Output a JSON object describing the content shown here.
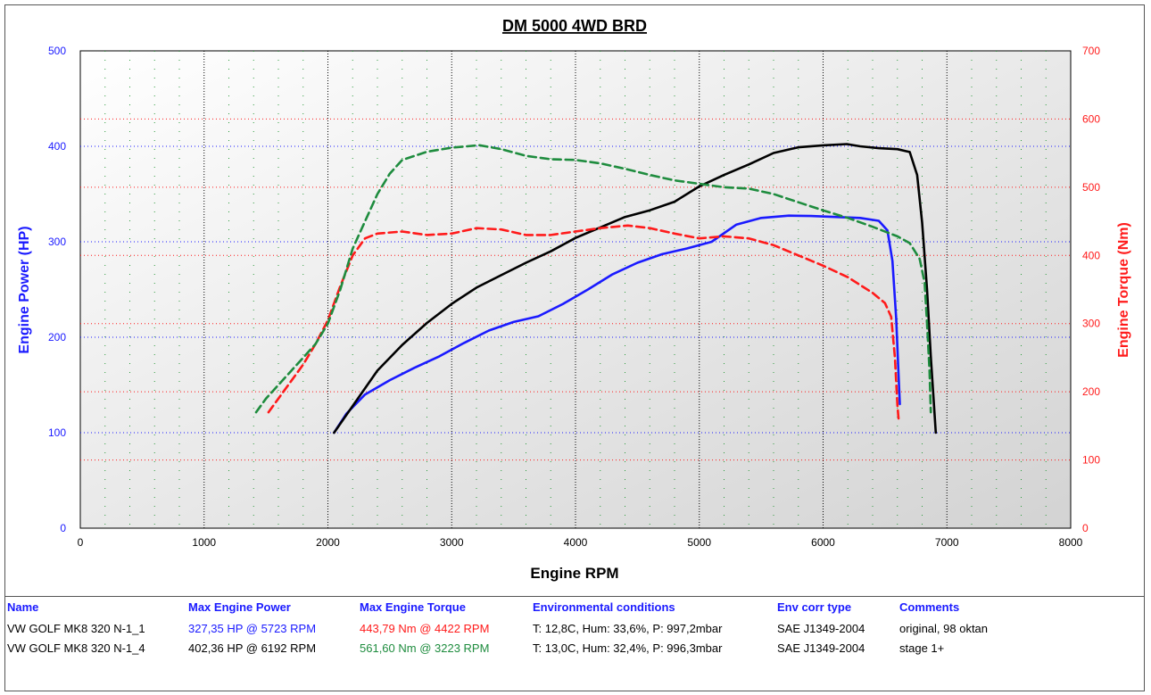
{
  "chart_data": {
    "type": "line",
    "title": "DM 5000 4WD BRD",
    "xlabel": "Engine RPM",
    "ylabel_left": "Engine Power (HP)",
    "ylabel_right": "Engine Torque (Nm)",
    "xlim": [
      0,
      8000
    ],
    "ylim_left": [
      0,
      500
    ],
    "ylim_right": [
      0,
      700
    ],
    "x_ticks": [
      0,
      1000,
      2000,
      3000,
      4000,
      5000,
      6000,
      7000,
      8000
    ],
    "y_ticks_left": [
      0,
      100,
      200,
      300,
      400,
      500
    ],
    "y_ticks_right": [
      0,
      100,
      200,
      300,
      400,
      500,
      600,
      700
    ],
    "grid": true,
    "colors": {
      "left_axis": "#1a1aff",
      "right_axis": "#ff1a1a",
      "x_axis": "#000000"
    },
    "series": [
      {
        "axis": "left",
        "color": "#1a1aff",
        "dash": false,
        "points": [
          [
            2050,
            100
          ],
          [
            2150,
            120
          ],
          [
            2300,
            140
          ],
          [
            2500,
            155
          ],
          [
            2700,
            168
          ],
          [
            2900,
            180
          ],
          [
            3100,
            194
          ],
          [
            3300,
            207
          ],
          [
            3500,
            216
          ],
          [
            3700,
            222
          ],
          [
            3900,
            235
          ],
          [
            4100,
            250
          ],
          [
            4300,
            266
          ],
          [
            4500,
            278
          ],
          [
            4700,
            287
          ],
          [
            4900,
            293
          ],
          [
            5100,
            300
          ],
          [
            5300,
            318
          ],
          [
            5500,
            325
          ],
          [
            5723,
            327.35
          ],
          [
            5900,
            327
          ],
          [
            6100,
            326
          ],
          [
            6300,
            325
          ],
          [
            6450,
            322
          ],
          [
            6520,
            312
          ],
          [
            6560,
            280
          ],
          [
            6590,
            220
          ],
          [
            6610,
            160
          ],
          [
            6620,
            130
          ]
        ]
      },
      {
        "axis": "left",
        "color": "#000000",
        "dash": false,
        "points": [
          [
            2050,
            100
          ],
          [
            2200,
            128
          ],
          [
            2400,
            165
          ],
          [
            2600,
            192
          ],
          [
            2800,
            215
          ],
          [
            3000,
            235
          ],
          [
            3200,
            252
          ],
          [
            3400,
            265
          ],
          [
            3600,
            278
          ],
          [
            3800,
            290
          ],
          [
            4000,
            304
          ],
          [
            4200,
            315
          ],
          [
            4400,
            326
          ],
          [
            4600,
            333
          ],
          [
            4800,
            342
          ],
          [
            5000,
            358
          ],
          [
            5200,
            370
          ],
          [
            5400,
            381
          ],
          [
            5600,
            393
          ],
          [
            5800,
            399
          ],
          [
            6000,
            401
          ],
          [
            6192,
            402.36
          ],
          [
            6300,
            400
          ],
          [
            6450,
            398
          ],
          [
            6600,
            397
          ],
          [
            6700,
            394
          ],
          [
            6760,
            370
          ],
          [
            6800,
            320
          ],
          [
            6840,
            250
          ],
          [
            6870,
            180
          ],
          [
            6900,
            120
          ],
          [
            6910,
            100
          ]
        ]
      },
      {
        "axis": "right",
        "color": "#ff1a1a",
        "dash": true,
        "points": [
          [
            1520,
            170
          ],
          [
            1600,
            190
          ],
          [
            1700,
            215
          ],
          [
            1800,
            240
          ],
          [
            1900,
            270
          ],
          [
            2000,
            305
          ],
          [
            2100,
            355
          ],
          [
            2200,
            400
          ],
          [
            2300,
            425
          ],
          [
            2400,
            432
          ],
          [
            2600,
            435
          ],
          [
            2800,
            430
          ],
          [
            3000,
            432
          ],
          [
            3200,
            440
          ],
          [
            3400,
            438
          ],
          [
            3600,
            430
          ],
          [
            3800,
            430
          ],
          [
            4000,
            435
          ],
          [
            4200,
            440
          ],
          [
            4422,
            443.79
          ],
          [
            4600,
            440
          ],
          [
            4800,
            432
          ],
          [
            5000,
            425
          ],
          [
            5200,
            428
          ],
          [
            5400,
            425
          ],
          [
            5600,
            415
          ],
          [
            5800,
            400
          ],
          [
            6000,
            385
          ],
          [
            6200,
            368
          ],
          [
            6400,
            345
          ],
          [
            6500,
            330
          ],
          [
            6550,
            310
          ],
          [
            6580,
            250
          ],
          [
            6600,
            180
          ],
          [
            6610,
            160
          ]
        ]
      },
      {
        "axis": "right",
        "color": "#1e8c3e",
        "dash": true,
        "points": [
          [
            1420,
            170
          ],
          [
            1500,
            190
          ],
          [
            1600,
            210
          ],
          [
            1700,
            230
          ],
          [
            1800,
            250
          ],
          [
            1900,
            270
          ],
          [
            2000,
            300
          ],
          [
            2100,
            350
          ],
          [
            2200,
            410
          ],
          [
            2300,
            450
          ],
          [
            2400,
            490
          ],
          [
            2500,
            520
          ],
          [
            2600,
            540
          ],
          [
            2800,
            552
          ],
          [
            3000,
            558
          ],
          [
            3223,
            561.6
          ],
          [
            3400,
            556
          ],
          [
            3600,
            546
          ],
          [
            3800,
            541
          ],
          [
            4000,
            540
          ],
          [
            4200,
            535
          ],
          [
            4400,
            527
          ],
          [
            4600,
            518
          ],
          [
            4800,
            510
          ],
          [
            5000,
            505
          ],
          [
            5200,
            500
          ],
          [
            5400,
            498
          ],
          [
            5600,
            490
          ],
          [
            5800,
            478
          ],
          [
            6000,
            466
          ],
          [
            6200,
            455
          ],
          [
            6400,
            442
          ],
          [
            6600,
            428
          ],
          [
            6700,
            418
          ],
          [
            6780,
            395
          ],
          [
            6820,
            360
          ],
          [
            6840,
            300
          ],
          [
            6860,
            230
          ],
          [
            6870,
            170
          ]
        ]
      }
    ]
  },
  "table": {
    "headers": [
      "Name",
      "Max Engine Power",
      "Max Engine Torque",
      "Environmental conditions",
      "Env corr type",
      "Comments"
    ],
    "rows": [
      {
        "name": "VW GOLF MK8 320 N-1_1",
        "power": "327,35 HP @ 5723 RPM",
        "power_color": "#1a1aff",
        "torque": "443,79 Nm @ 4422 RPM",
        "torque_color": "#ff1a1a",
        "env": "T: 12,8C, Hum: 33,6%, P: 997,2mbar",
        "corr": "SAE J1349-2004",
        "comment": "original, 98 oktan"
      },
      {
        "name": "VW GOLF MK8 320 N-1_4",
        "power": "402,36 HP @ 6192 RPM",
        "power_color": "#000000",
        "torque": "561,60 Nm @ 3223 RPM",
        "torque_color": "#1e8c3e",
        "env": "T: 13,0C, Hum: 32,4%, P: 996,3mbar",
        "corr": "SAE J1349-2004",
        "comment": "stage 1+"
      }
    ]
  }
}
